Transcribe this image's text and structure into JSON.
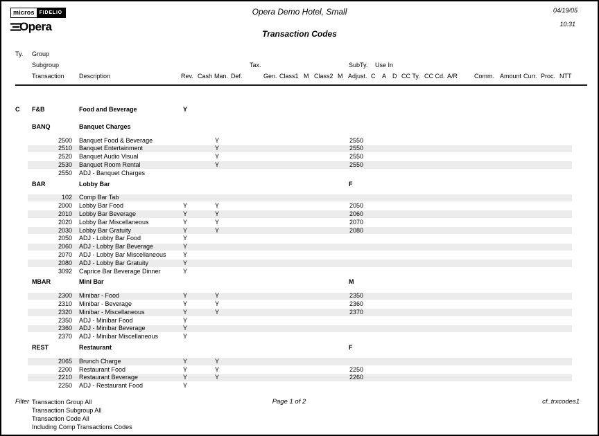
{
  "header": {
    "logo_micros": "micros",
    "logo_fidelio": "FIDELIO",
    "logo_opera": "Opera",
    "hotel_name": "Opera Demo Hotel, Small",
    "report_title": "Transaction Codes",
    "date": "04/19/05",
    "time": "10:31"
  },
  "columns": {
    "ty": "Ty.",
    "group": "Group",
    "subgroup": "Subgroup",
    "transaction": "Transaction",
    "description": "Description",
    "rev": "Rev.",
    "cash": "Cash",
    "man": "Man.",
    "def": "Def.",
    "tax": "Tax.",
    "gen": "Gen.",
    "class1": "Class1",
    "m1": "M",
    "class2": "Class2",
    "m2": "M",
    "subty": "SubTy.",
    "adjust": "Adjust.",
    "use_in": "Use In",
    "c": "C",
    "a": "A",
    "d": "D",
    "cc_ty": "CC Ty.",
    "cc_cd": "CC Cd.",
    "ar": "A/R",
    "comm": "Comm.",
    "amount": "Amount",
    "curr": "Curr.",
    "proc": "Proc.",
    "ntt": "NTT"
  },
  "group": {
    "ty": "C",
    "code": "F&B",
    "name": "Food and Beverage",
    "rev": "Y"
  },
  "subgroups": [
    {
      "code": "BANQ",
      "name": "Banquet Charges",
      "subty": "",
      "transactions": [
        {
          "code": "2500",
          "desc": "Banquet Food & Beverage",
          "rev": "",
          "man": "Y",
          "adjust": "2550"
        },
        {
          "code": "2510",
          "desc": "Banquet Entertainment",
          "rev": "",
          "man": "Y",
          "adjust": "2550"
        },
        {
          "code": "2520",
          "desc": "Banquet Audio Visual",
          "rev": "",
          "man": "Y",
          "adjust": "2550"
        },
        {
          "code": "2530",
          "desc": "Banquet Room Rental",
          "rev": "",
          "man": "Y",
          "adjust": "2550"
        },
        {
          "code": "2550",
          "desc": "ADJ - Banquet Charges",
          "rev": "",
          "man": "",
          "adjust": ""
        }
      ]
    },
    {
      "code": "BAR",
      "name": "Lobby Bar",
      "subty": "F",
      "transactions": [
        {
          "code": "102",
          "desc": "Comp Bar Tab",
          "rev": "",
          "man": "",
          "adjust": ""
        },
        {
          "code": "2000",
          "desc": "Lobby Bar Food",
          "rev": "Y",
          "man": "Y",
          "adjust": "2050"
        },
        {
          "code": "2010",
          "desc": "Lobby Bar Beverage",
          "rev": "Y",
          "man": "Y",
          "adjust": "2060"
        },
        {
          "code": "2020",
          "desc": "Lobby Bar Miscellaneous",
          "rev": "Y",
          "man": "Y",
          "adjust": "2070"
        },
        {
          "code": "2030",
          "desc": "Lobby Bar Gratuity",
          "rev": "Y",
          "man": "Y",
          "adjust": "2080"
        },
        {
          "code": "2050",
          "desc": "ADJ - Lobby Bar Food",
          "rev": "Y",
          "man": "",
          "adjust": ""
        },
        {
          "code": "2060",
          "desc": "ADJ - Lobby Bar Beverage",
          "rev": "Y",
          "man": "",
          "adjust": ""
        },
        {
          "code": "2070",
          "desc": "ADJ - Lobby Bar Miscellaneous",
          "rev": "Y",
          "man": "",
          "adjust": ""
        },
        {
          "code": "2080",
          "desc": "ADJ - Lobby Bar Gratuity",
          "rev": "Y",
          "man": "",
          "adjust": ""
        },
        {
          "code": "3092",
          "desc": "Caprice Bar Beverage Dinner",
          "rev": "Y",
          "man": "",
          "adjust": ""
        }
      ]
    },
    {
      "code": "MBAR",
      "name": "Mini Bar",
      "subty": "M",
      "transactions": [
        {
          "code": "2300",
          "desc": "Minibar - Food",
          "rev": "Y",
          "man": "Y",
          "adjust": "2350"
        },
        {
          "code": "2310",
          "desc": "Minibar - Beverage",
          "rev": "Y",
          "man": "Y",
          "adjust": "2360"
        },
        {
          "code": "2320",
          "desc": "Minibar - Miscellaneous",
          "rev": "Y",
          "man": "Y",
          "adjust": "2370"
        },
        {
          "code": "2350",
          "desc": "ADJ - Minibar Food",
          "rev": "Y",
          "man": "",
          "adjust": ""
        },
        {
          "code": "2360",
          "desc": "ADJ - Minibar Beverage",
          "rev": "Y",
          "man": "",
          "adjust": ""
        },
        {
          "code": "2370",
          "desc": "ADJ - Minibar Miscellaneous",
          "rev": "Y",
          "man": "",
          "adjust": ""
        }
      ]
    },
    {
      "code": "REST",
      "name": "Restaurant",
      "subty": "F",
      "transactions": [
        {
          "code": "2065",
          "desc": "Brunch Charge",
          "rev": "Y",
          "man": "Y",
          "adjust": ""
        },
        {
          "code": "2200",
          "desc": "Restaurant Food",
          "rev": "Y",
          "man": "Y",
          "adjust": "2250"
        },
        {
          "code": "2210",
          "desc": "Restaurant Beverage",
          "rev": "Y",
          "man": "Y",
          "adjust": "2260"
        },
        {
          "code": "2250",
          "desc": "ADJ - Restaurant Food",
          "rev": "Y",
          "man": "",
          "adjust": ""
        }
      ]
    }
  ],
  "footer": {
    "filter_label": "Filter",
    "filter_lines": [
      "Transaction Group All",
      "Transaction Subgroup All",
      "Transaction Code All",
      "Including Comp Transactions Codes"
    ],
    "page_label": "Page 1 of 2",
    "report_code": "cf_trxcodes1"
  }
}
